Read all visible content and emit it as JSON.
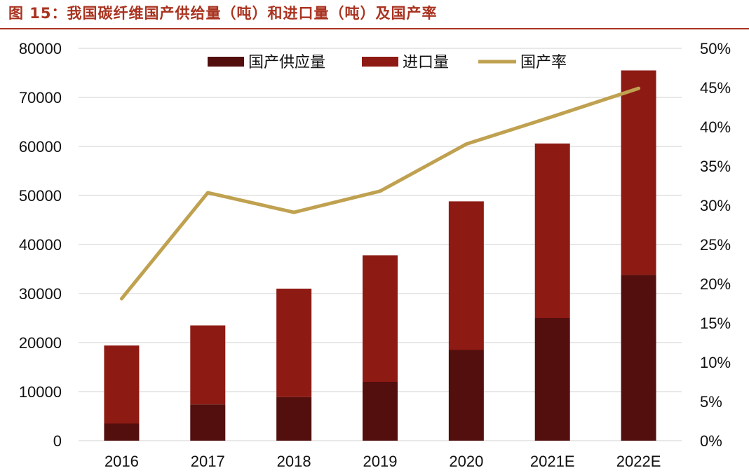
{
  "page": {
    "title": "图 15：我国碳纤维国产供给量（吨）和进口量（吨）及国产率"
  },
  "colors": {
    "domestic": "#520F0D",
    "import": "#8E1A14",
    "rate": "#BFA150",
    "title": "#A93320",
    "grid": "#d9d9d9"
  },
  "chart_data": {
    "type": "bar",
    "stacked": true,
    "categories": [
      "2016",
      "2017",
      "2018",
      "2019",
      "2020",
      "2021E",
      "2022E"
    ],
    "series": [
      {
        "name": "国产供应量",
        "type": "bar",
        "axis": "left",
        "values": [
          3500,
          7400,
          8900,
          12000,
          18500,
          25000,
          33800
        ]
      },
      {
        "name": "进口量",
        "type": "bar",
        "axis": "left",
        "values": [
          15900,
          16100,
          22100,
          25800,
          30300,
          35600,
          41700
        ]
      },
      {
        "name": "国产率",
        "type": "line",
        "axis": "right",
        "values": [
          0.181,
          0.316,
          0.291,
          0.318,
          0.378,
          0.413,
          0.449
        ]
      }
    ],
    "left_axis": {
      "ylim": [
        0,
        80000
      ],
      "ticks": [
        "0",
        "10000",
        "20000",
        "30000",
        "40000",
        "50000",
        "60000",
        "70000",
        "80000"
      ]
    },
    "right_axis": {
      "ylim": [
        0,
        0.5
      ],
      "ticks": [
        "0%",
        "5%",
        "10%",
        "15%",
        "20%",
        "25%",
        "30%",
        "35%",
        "40%",
        "45%",
        "50%"
      ]
    },
    "grid": true,
    "legend_position": "top-center"
  }
}
